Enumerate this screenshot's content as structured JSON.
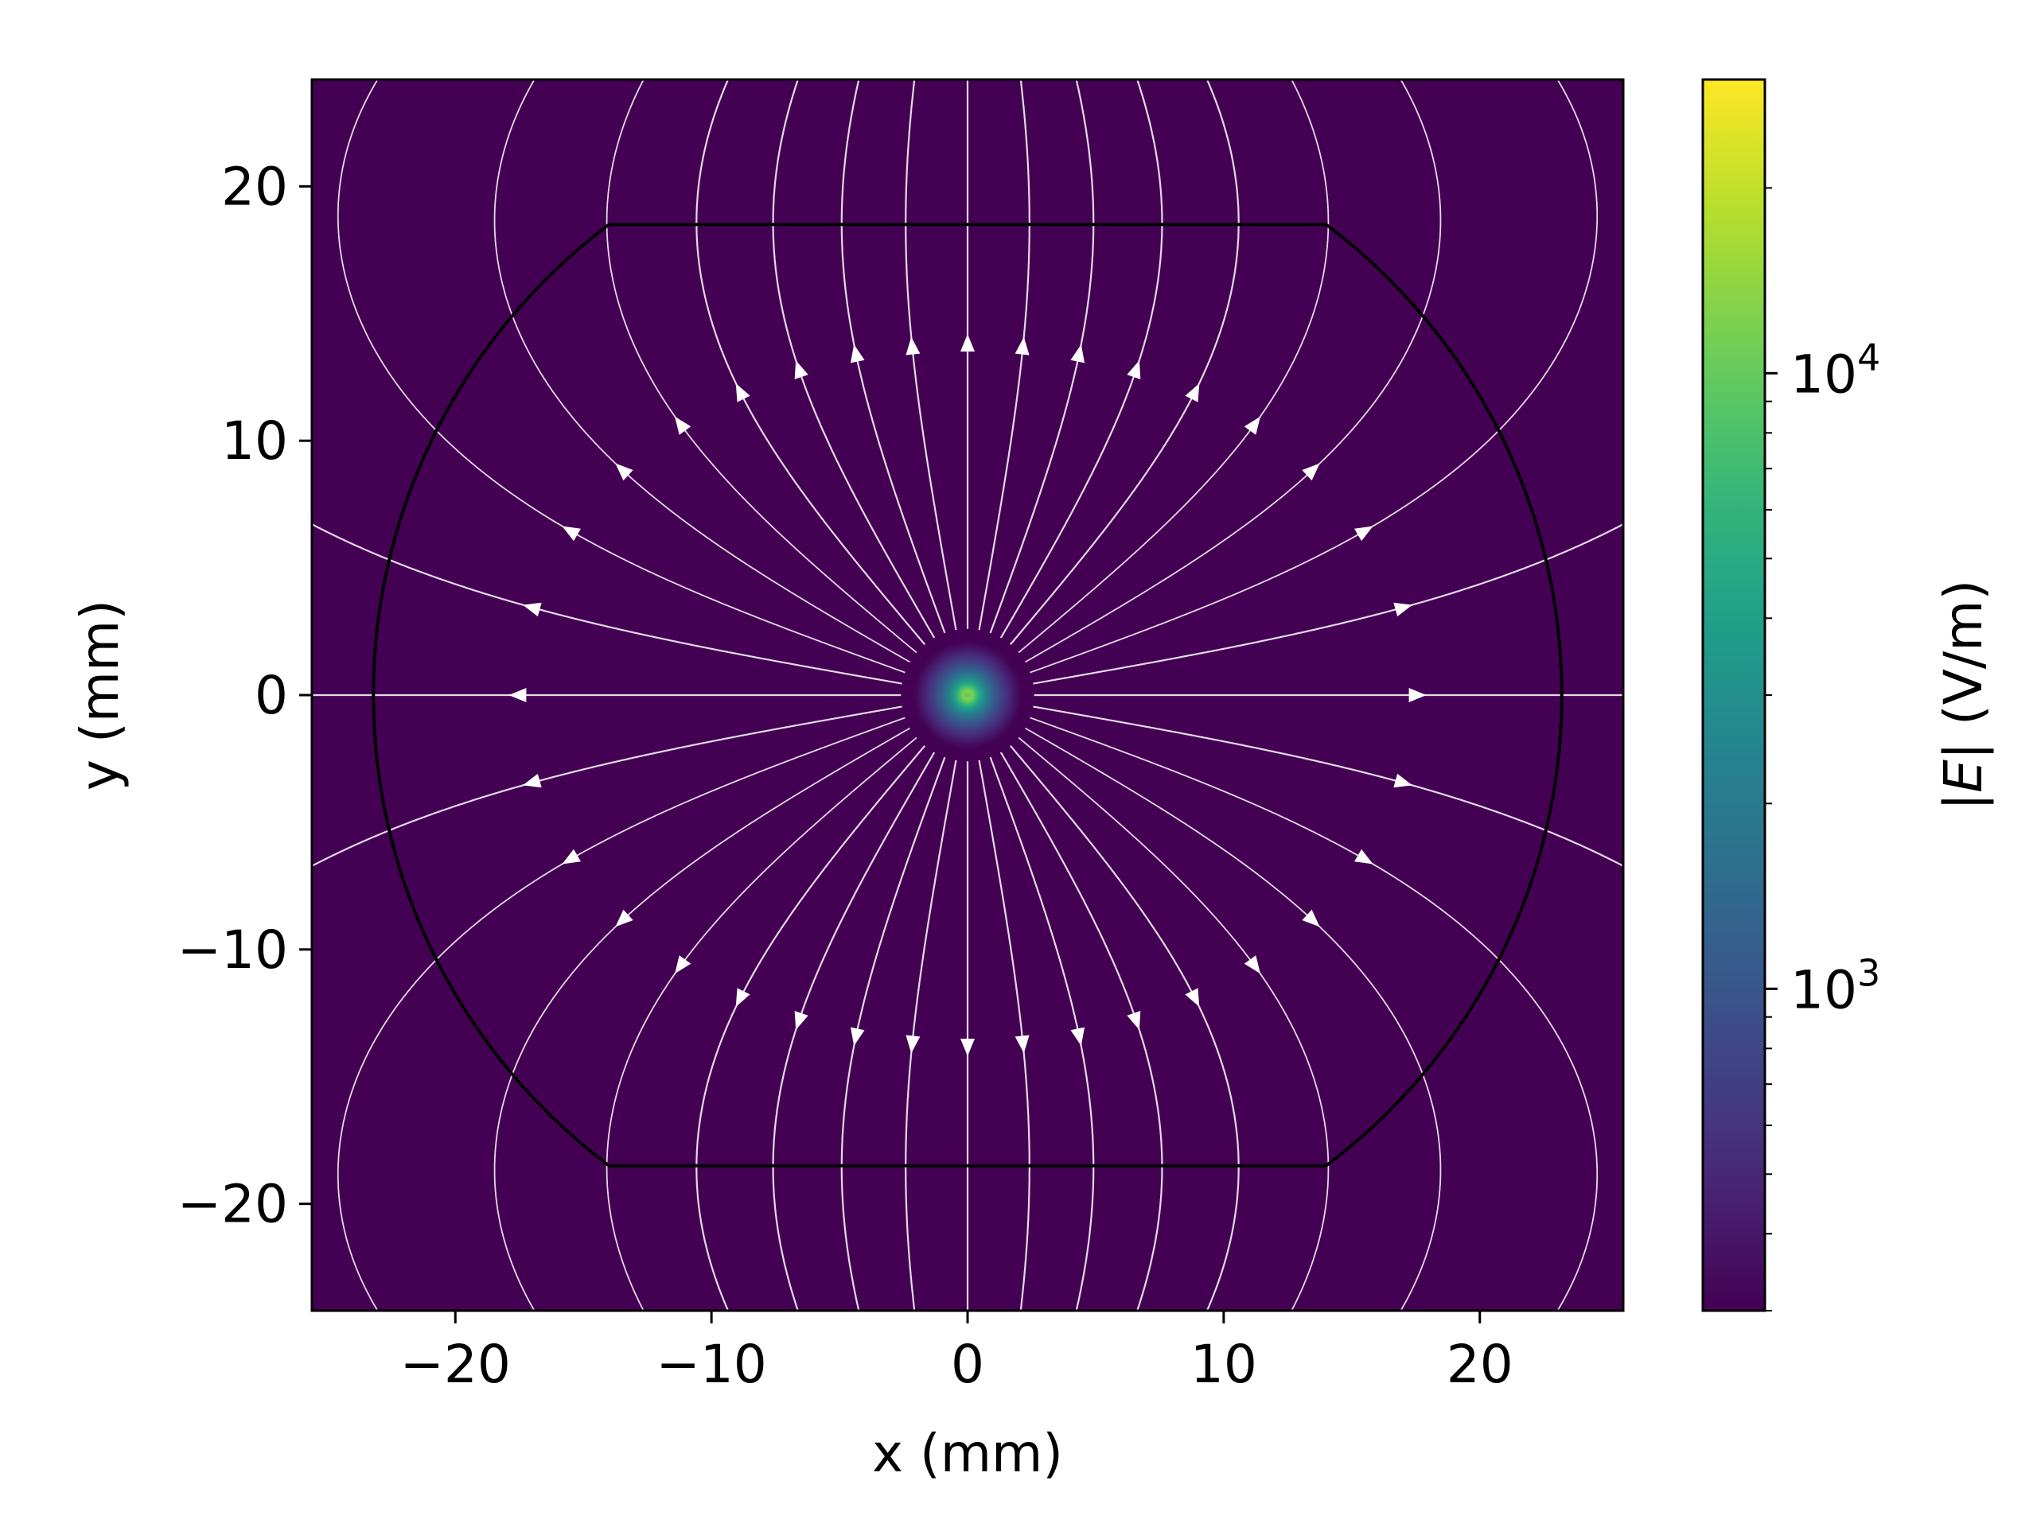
{
  "chart_data": {
    "type": "heatmap",
    "title": "",
    "xlabel": "x (mm)",
    "ylabel": "y (mm)",
    "xlim": [
      -25.6,
      25.6
    ],
    "ylim": [
      -24.2,
      24.2
    ],
    "xticks": [
      -20,
      -10,
      0,
      10,
      20
    ],
    "yticks": [
      -20,
      -10,
      0,
      10,
      20
    ],
    "xtick_labels": [
      "−20",
      "−10",
      "0",
      "10",
      "20"
    ],
    "ytick_labels": [
      "−20",
      "−10",
      "0",
      "10",
      "20"
    ],
    "colorbar": {
      "label_prefix": "|",
      "label_var": "E",
      "label_suffix": "| (V/m)",
      "scale": "log",
      "colormap": "viridis",
      "range": [
        300,
        30000
      ],
      "major_ticks": [
        {
          "value": 1000,
          "base": "10",
          "exp": "3"
        },
        {
          "value": 10000,
          "base": "10",
          "exp": "4"
        }
      ],
      "minor_ticks": [
        300,
        400,
        500,
        600,
        700,
        800,
        900,
        2000,
        3000,
        4000,
        5000,
        6000,
        7000,
        8000,
        9000,
        20000
      ]
    },
    "charge": {
      "x": 0,
      "y": 0,
      "peak_field": 30000
    },
    "boundary": {
      "shape": "circle clipped by horizontal lines",
      "radius": 23.2,
      "flat_y": 18.5,
      "color": "#000000"
    },
    "field_lines": {
      "count": 36,
      "color": "#ffffff",
      "arrow_radius_x": 17.5,
      "arrow_radius_y": 13.8
    }
  }
}
